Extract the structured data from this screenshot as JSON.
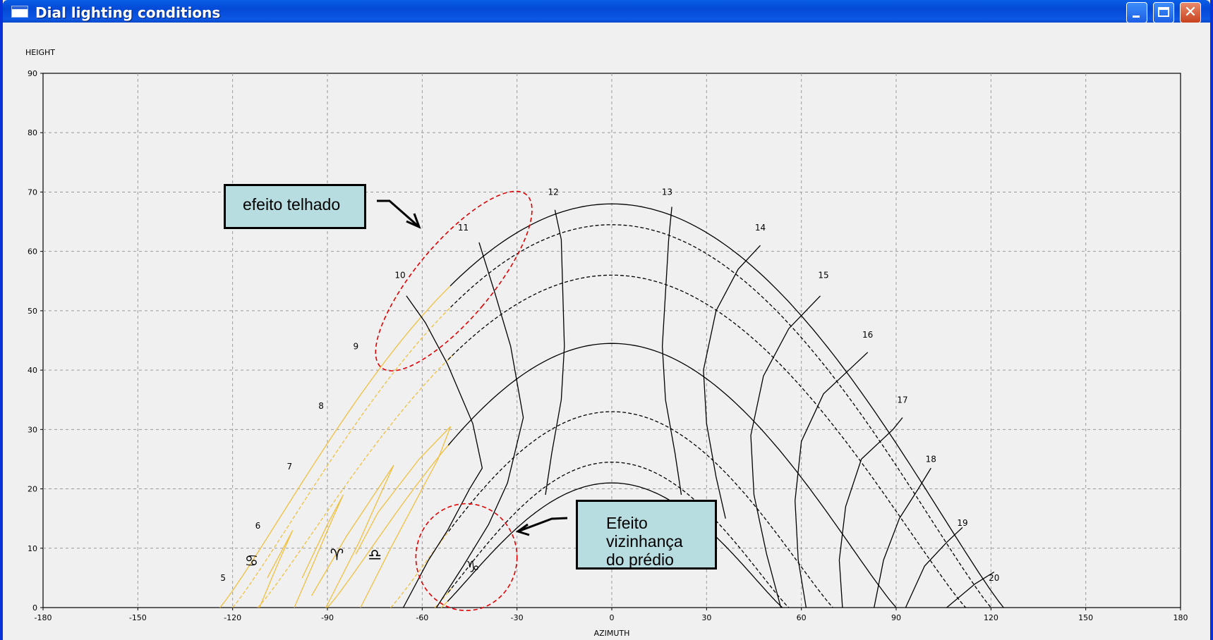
{
  "window": {
    "title": "Dial lighting conditions",
    "buttons": {
      "minimize": "minimize-icon",
      "maximize": "maximize-icon",
      "close": "close-icon"
    },
    "close_glyph": "✕"
  },
  "callouts": {
    "roof_effect": "efeito telhado",
    "neighbor_effect": "Efeito\nvizinhança\ndo prédio"
  },
  "chart_data": {
    "type": "line",
    "title": "",
    "xlabel": "AZIMUTH",
    "ylabel": "HEIGHT",
    "xlim": [
      -180,
      180
    ],
    "ylim": [
      0,
      90
    ],
    "xticks": [
      -180,
      -150,
      -120,
      -90,
      -60,
      -30,
      0,
      30,
      60,
      90,
      120,
      150,
      180
    ],
    "yticks": [
      0,
      10,
      20,
      30,
      40,
      50,
      60,
      70,
      80,
      90
    ],
    "grid": true,
    "colors": {
      "visible": "#000000",
      "obstructed": "#f0c040",
      "annotation": "#e00000"
    },
    "zodiac_symbols": [
      {
        "symbol": "♋",
        "x": -114,
        "y": 7
      },
      {
        "symbol": "♈",
        "x": -87,
        "y": 8
      },
      {
        "symbol": "♎",
        "x": -75,
        "y": 8
      },
      {
        "symbol": "♑",
        "x": -44,
        "y": 6
      }
    ],
    "hour_lines": [
      {
        "hour": "5",
        "points": [
          [
            -124.5,
            0
          ]
        ],
        "label_at": [
          -123,
          4.5
        ],
        "visible_from": 999
      },
      {
        "hour": "6",
        "points": [
          [
            -111.5,
            0
          ],
          [
            -106,
            7
          ],
          [
            -101,
            13
          ],
          [
            -109,
            5
          ],
          [
            -122,
            -2
          ]
        ],
        "label_at": [
          -112,
          13.3
        ],
        "visible_from": 999
      },
      {
        "hour": "7",
        "points": [
          [
            -100.5,
            0
          ],
          [
            -94,
            8
          ],
          [
            -90,
            13
          ],
          [
            -85,
            19
          ],
          [
            -90,
            14
          ],
          [
            -98,
            5
          ],
          [
            -110,
            -4
          ]
        ],
        "label_at": [
          -102,
          23.3
        ],
        "visible_from": 999
      },
      {
        "hour": "8",
        "points": [
          [
            -90.5,
            0
          ],
          [
            -80,
            11
          ],
          [
            -75,
            17
          ],
          [
            -69,
            24
          ],
          [
            -74,
            20
          ],
          [
            -84,
            12
          ],
          [
            -95,
            2
          ]
        ],
        "label_at": [
          -92,
          33.5
        ],
        "visible_from": 999
      },
      {
        "hour": "9",
        "points": [
          [
            -79.5,
            0
          ],
          [
            -70,
            10
          ],
          [
            -63,
            17
          ],
          [
            -55,
            25
          ],
          [
            -51,
            30.5
          ],
          [
            -61,
            25
          ],
          [
            -74,
            16
          ],
          [
            -81,
            9
          ]
        ],
        "label_at": [
          -81,
          43.5
        ],
        "visible_from": 999
      },
      {
        "hour": "10",
        "points": [
          [
            -66,
            0
          ],
          [
            -58,
            8
          ],
          [
            -52,
            13
          ],
          [
            -45,
            20
          ],
          [
            -41,
            23.5
          ],
          [
            -44,
            31
          ],
          [
            -52,
            41
          ],
          [
            -59,
            48
          ],
          [
            -65,
            52.5
          ]
        ],
        "label_at": [
          -67,
          55.5
        ],
        "visible_from": -46
      },
      {
        "hour": "11",
        "points": [
          [
            -55.5,
            0
          ],
          [
            -47,
            7
          ],
          [
            -39,
            14
          ],
          [
            -33,
            21
          ],
          [
            -28,
            32
          ],
          [
            -32,
            44
          ],
          [
            -37,
            53
          ],
          [
            -42,
            61.5
          ]
        ],
        "label_at": [
          -47,
          63.5
        ],
        "visible_from": -40
      },
      {
        "hour": "12",
        "points": [
          [
            -21,
            19
          ],
          [
            -19,
            26
          ],
          [
            -16,
            35
          ],
          [
            -15,
            44
          ],
          [
            -15.5,
            53
          ],
          [
            -16,
            62
          ],
          [
            -18,
            67
          ]
        ],
        "label_at": [
          -18.5,
          69.5
        ],
        "visible_from": -50
      },
      {
        "hour": "13",
        "points": [
          [
            22,
            19
          ],
          [
            20,
            26
          ],
          [
            17,
            35
          ],
          [
            16,
            44
          ],
          [
            17,
            53
          ],
          [
            18,
            62
          ],
          [
            19,
            67.5
          ]
        ],
        "label_at": [
          17.5,
          69.5
        ],
        "visible_from": -50
      },
      {
        "hour": "14",
        "points": [
          [
            36,
            15
          ],
          [
            33,
            22
          ],
          [
            30,
            31
          ],
          [
            29,
            40
          ],
          [
            33,
            50
          ],
          [
            40,
            57
          ],
          [
            47,
            61
          ]
        ],
        "label_at": [
          47,
          63.5
        ],
        "visible_from": -50
      },
      {
        "hour": "15",
        "points": [
          [
            53.5,
            0
          ],
          [
            49,
            9
          ],
          [
            45,
            19
          ],
          [
            44,
            29
          ],
          [
            48,
            39
          ],
          [
            56,
            47
          ],
          [
            66,
            52.5
          ]
        ],
        "label_at": [
          67,
          55.5
        ],
        "visible_from": -50
      },
      {
        "hour": "16",
        "points": [
          [
            61.5,
            0
          ],
          [
            59,
            8
          ],
          [
            58,
            18
          ],
          [
            60,
            28
          ],
          [
            67,
            36
          ],
          [
            77,
            41
          ],
          [
            81,
            43
          ]
        ],
        "label_at": [
          81,
          45.5
        ],
        "visible_from": -50
      },
      {
        "hour": "17",
        "points": [
          [
            73,
            0
          ],
          [
            72,
            8
          ],
          [
            74,
            17
          ],
          [
            79,
            25
          ],
          [
            89,
            30
          ],
          [
            92,
            32
          ]
        ],
        "label_at": [
          92,
          34.5
        ],
        "visible_from": -50
      },
      {
        "hour": "18",
        "points": [
          [
            83,
            0
          ],
          [
            86,
            8
          ],
          [
            91,
            15
          ],
          [
            97,
            20
          ],
          [
            101,
            23.5
          ]
        ],
        "label_at": [
          101,
          24.5
        ],
        "visible_from": -50
      },
      {
        "hour": "19",
        "points": [
          [
            93,
            0
          ],
          [
            99,
            7
          ],
          [
            106,
            11
          ],
          [
            111,
            13.5
          ]
        ],
        "label_at": [
          111,
          13.8
        ],
        "visible_from": -50
      },
      {
        "hour": "20",
        "points": [
          [
            106,
            0
          ],
          [
            115,
            4
          ],
          [
            121,
            6
          ]
        ],
        "label_at": [
          121,
          4.5
        ],
        "visible_from": -50
      }
    ],
    "day_arcs": [
      {
        "name": "summer_solstice",
        "peak": 68,
        "halfwidth": 124,
        "style": "solid"
      },
      {
        "name": "arc_2",
        "peak": 64.5,
        "halfwidth": 120,
        "style": "dashed"
      },
      {
        "name": "arc_3",
        "peak": 56,
        "halfwidth": 112,
        "style": "dashed"
      },
      {
        "name": "equinox",
        "peak": 44.5,
        "halfwidth": 90,
        "style": "solid"
      },
      {
        "name": "arc_5",
        "peak": 33,
        "halfwidth": 70,
        "style": "dashed"
      },
      {
        "name": "arc_6",
        "peak": 24.5,
        "halfwidth": 56,
        "style": "dashed"
      },
      {
        "name": "winter_solstice",
        "peak": 21,
        "halfwidth": 54,
        "style": "solid"
      }
    ],
    "obstruction_boundary_azimuth": -50,
    "annotations": [
      {
        "name": "roof-effect-ellipse",
        "cx": -50,
        "cy": 55,
        "rx": 12,
        "ry": 19,
        "rotate": 40
      },
      {
        "name": "neighbor-effect-ellipse",
        "cx": -46,
        "cy": 8.5,
        "rx": 16,
        "ry": 9,
        "rotate": 0
      }
    ]
  }
}
